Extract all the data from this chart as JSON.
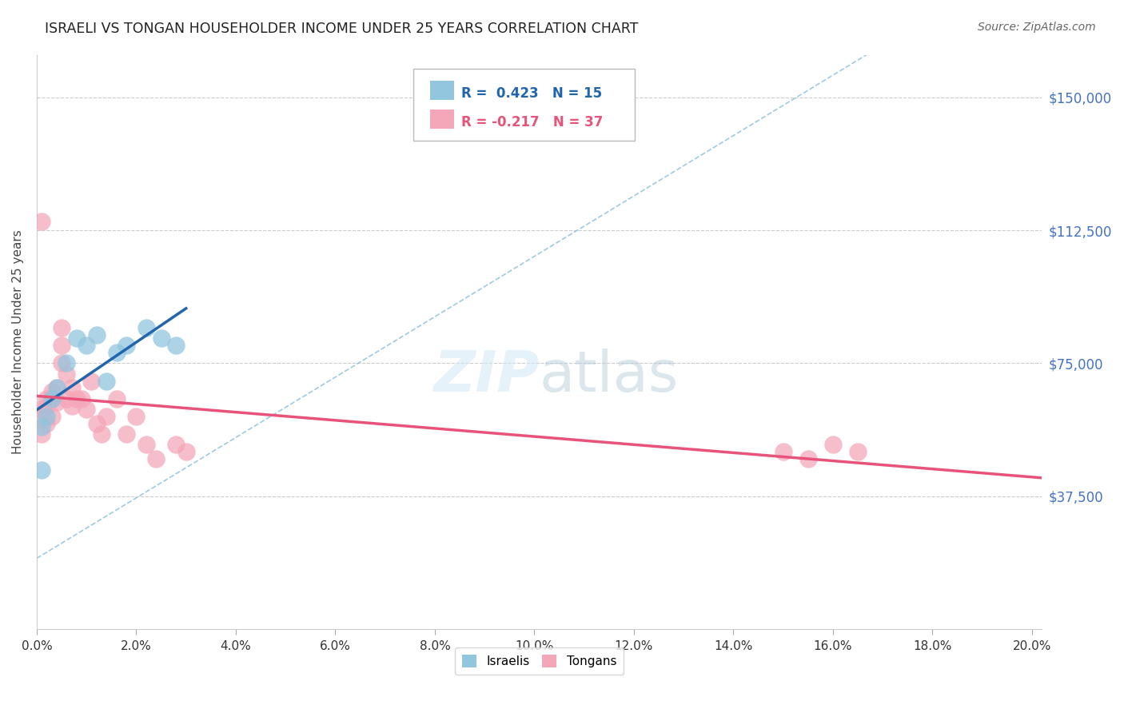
{
  "title": "ISRAELI VS TONGAN HOUSEHOLDER INCOME UNDER 25 YEARS CORRELATION CHART",
  "source": "Source: ZipAtlas.com",
  "ylabel": "Householder Income Under 25 years",
  "ytick_values": [
    0,
    37500,
    75000,
    112500,
    150000
  ],
  "ytick_labels": [
    "",
    "$37,500",
    "$75,000",
    "$112,500",
    "$150,000"
  ],
  "xlim": [
    0.0,
    0.202
  ],
  "ylim": [
    20000,
    162000
  ],
  "israelis_R": 0.423,
  "israelis_N": 15,
  "tongans_R": -0.217,
  "tongans_N": 37,
  "israeli_color": "#92C5DE",
  "tongan_color": "#F4A7B9",
  "israeli_line_color": "#2166AC",
  "tongan_line_color": "#E8537A",
  "diagonal_color": "#92C5DE",
  "background_color": "#FFFFFF",
  "israeli_x": [
    0.001,
    0.002,
    0.003,
    0.004,
    0.006,
    0.008,
    0.01,
    0.012,
    0.014,
    0.016,
    0.018,
    0.022,
    0.025,
    0.028,
    0.001
  ],
  "israeli_y": [
    57000,
    60000,
    65000,
    68000,
    75000,
    82000,
    80000,
    83000,
    70000,
    78000,
    80000,
    85000,
    82000,
    80000,
    45000
  ],
  "tongan_x": [
    0.001,
    0.001,
    0.001,
    0.002,
    0.002,
    0.002,
    0.003,
    0.003,
    0.003,
    0.004,
    0.004,
    0.005,
    0.005,
    0.005,
    0.006,
    0.006,
    0.007,
    0.007,
    0.008,
    0.009,
    0.01,
    0.011,
    0.012,
    0.013,
    0.014,
    0.016,
    0.018,
    0.02,
    0.022,
    0.024,
    0.028,
    0.03,
    0.15,
    0.155,
    0.16,
    0.165,
    0.001
  ],
  "tongan_y": [
    62000,
    60000,
    115000,
    65000,
    63000,
    58000,
    67000,
    65000,
    60000,
    68000,
    64000,
    85000,
    80000,
    75000,
    72000,
    65000,
    68000,
    63000,
    65000,
    65000,
    62000,
    70000,
    58000,
    55000,
    60000,
    65000,
    55000,
    60000,
    52000,
    48000,
    52000,
    50000,
    50000,
    48000,
    52000,
    50000,
    55000
  ],
  "xtick_positions": [
    0.0,
    0.02,
    0.04,
    0.06,
    0.08,
    0.1,
    0.12,
    0.14,
    0.16,
    0.18,
    0.2
  ],
  "xtick_labels": [
    "0.0%",
    "2.0%",
    "4.0%",
    "6.0%",
    "8.0%",
    "10.0%",
    "12.0%",
    "14.0%",
    "16.0%",
    "18.0%",
    "20.0%"
  ]
}
